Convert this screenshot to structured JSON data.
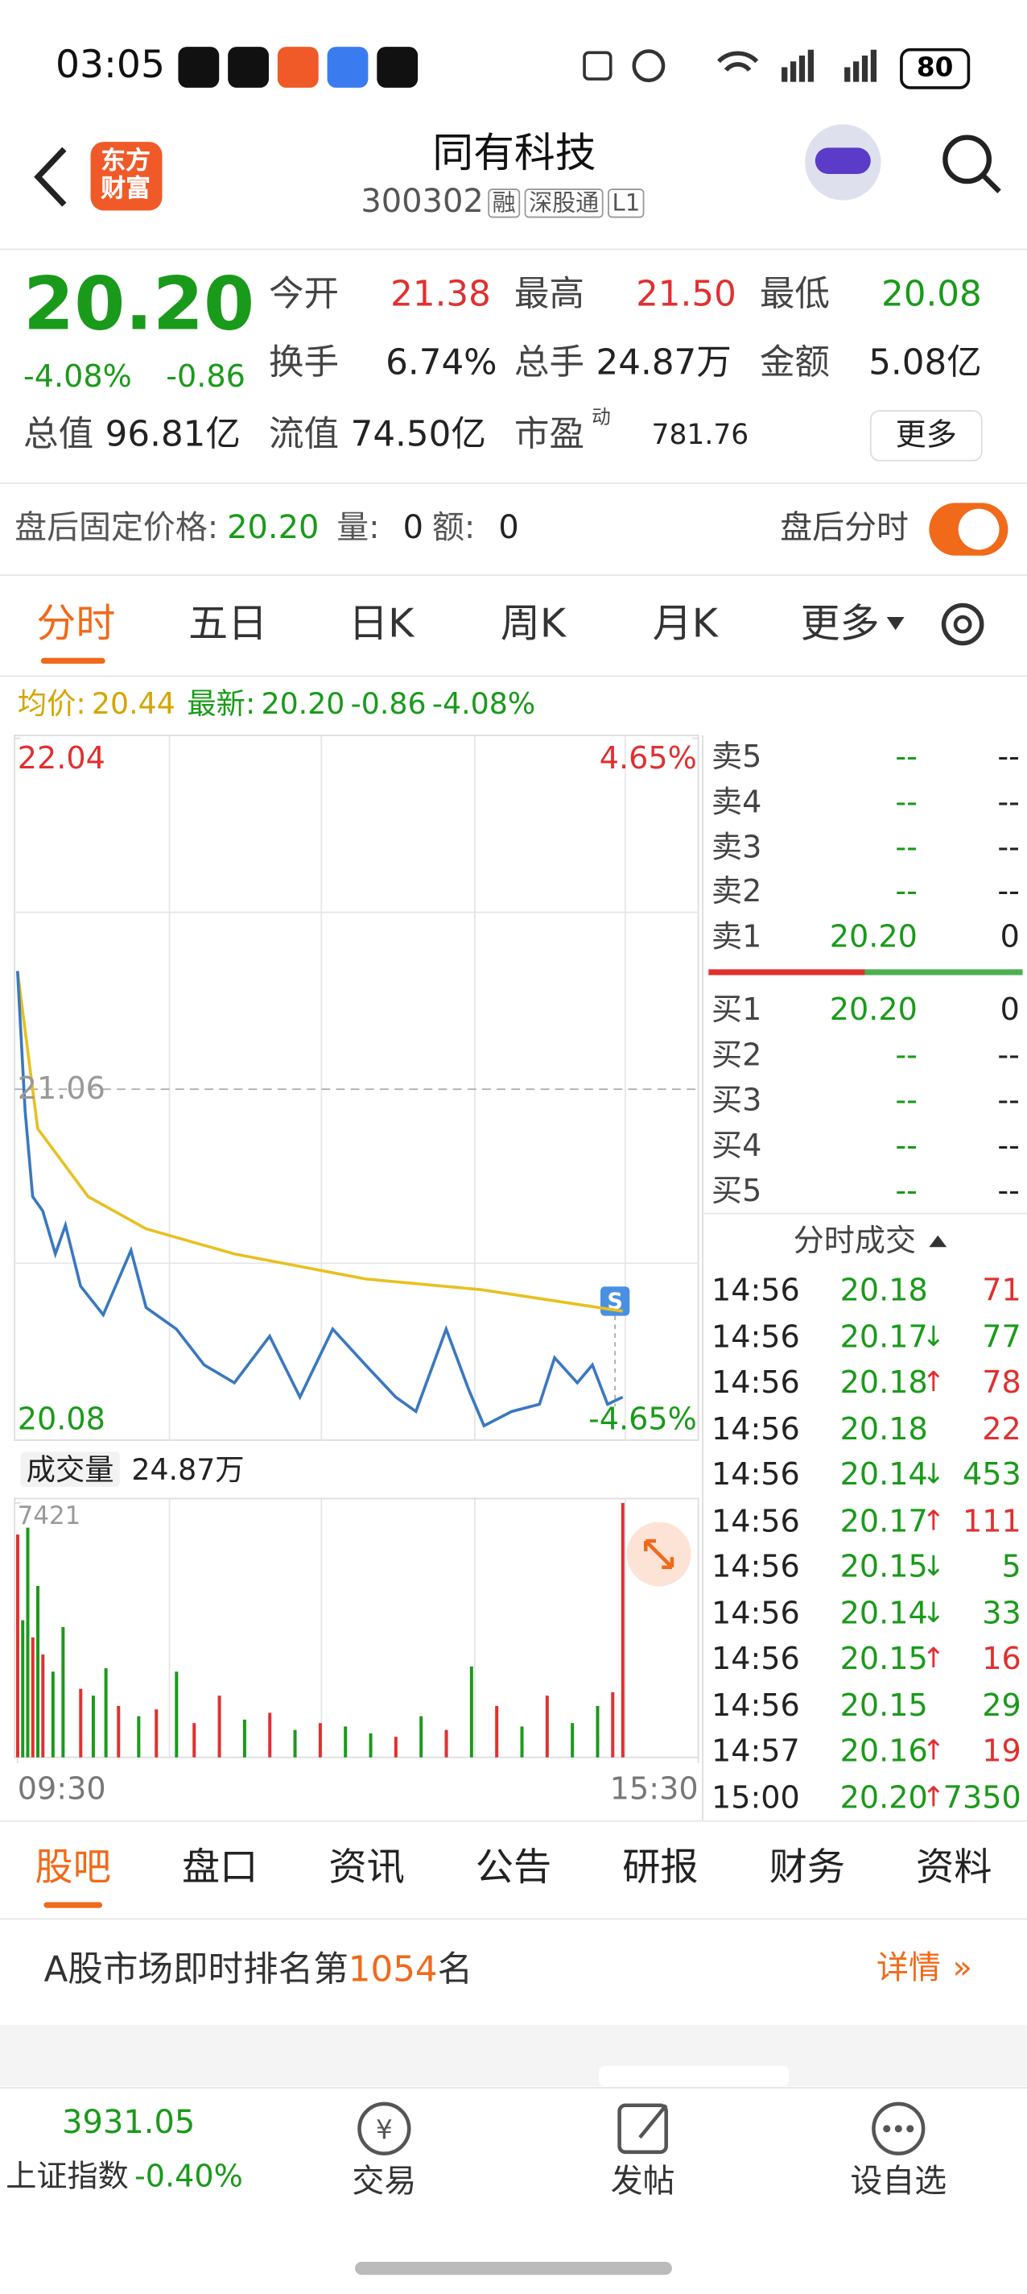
{
  "status_bar": {
    "time": "03:05",
    "battery": "80"
  },
  "header": {
    "logo": "东方财富",
    "title": "同有科技",
    "code": "300302",
    "tags": [
      "融",
      "深股通",
      "L1"
    ]
  },
  "quote": {
    "price": "20.20",
    "change_pct": "-4.08%",
    "change": "-0.86",
    "open": {
      "label": "今开",
      "value": "21.38"
    },
    "high": {
      "label": "最高",
      "value": "21.50"
    },
    "low": {
      "label": "最低",
      "value": "20.08"
    },
    "turnover": {
      "label": "换手",
      "value": "6.74%"
    },
    "volume": {
      "label": "总手",
      "value": "24.87万"
    },
    "amount": {
      "label": "金额",
      "value": "5.08亿"
    },
    "market_cap": {
      "label": "总值",
      "value": "96.81亿"
    },
    "float_cap": {
      "label": "流值",
      "value": "74.50亿"
    },
    "pe": {
      "label": "市盈",
      "superscript": "动",
      "value": "781.76"
    },
    "more": "更多"
  },
  "after_hours": {
    "price_label": "盘后固定价格:",
    "price": "20.20",
    "volume_label": "量:",
    "volume": "0",
    "amount_label": "额:",
    "amount": "0",
    "toggle_label": "盘后分时"
  },
  "chart_tabs": [
    "分时",
    "五日",
    "日K",
    "周K",
    "月K",
    "更多"
  ],
  "chart_data": [
    {
      "type": "line",
      "legend": {
        "avg_label": "均价:",
        "avg_value": "20.44",
        "latest_label": "最新:",
        "latest_value": "20.20",
        "latest_change": "-0.86",
        "latest_pct": "-4.08%"
      },
      "xlim": [
        0,
        270
      ],
      "ylim": [
        20.08,
        22.04
      ],
      "yticks": [
        22.04,
        21.06,
        20.08
      ],
      "ytick_colors": [
        "#e03030",
        "#999999",
        "#1a9a1a"
      ],
      "y2lim": [
        -4.65,
        4.65
      ],
      "y2ticks": [
        {
          "value": 4.65,
          "label": "4.65%"
        },
        {
          "value": -4.65,
          "label": "-4.65%"
        }
      ],
      "y2tick_colors": [
        "#e03030",
        "#1a9a1a"
      ],
      "series": [
        {
          "color": "#3a78c0",
          "x": [
            0,
            3,
            6,
            10,
            15,
            19,
            25,
            34,
            45,
            51,
            63,
            74,
            86,
            100,
            112,
            125,
            138,
            150,
            158,
            170,
            179,
            185,
            196,
            207,
            213,
            222,
            228,
            234,
            240
          ],
          "values": [
            21.39,
            21.0,
            20.76,
            20.72,
            20.6,
            20.68,
            20.51,
            20.43,
            20.61,
            20.45,
            20.39,
            20.29,
            20.24,
            20.37,
            20.2,
            20.39,
            20.29,
            20.2,
            20.16,
            20.39,
            20.22,
            20.12,
            20.16,
            20.18,
            20.31,
            20.24,
            20.29,
            20.18,
            20.2
          ]
        },
        {
          "color": "#e8c020",
          "x": [
            0,
            8,
            28,
            51,
            86,
            138,
            184,
            240
          ],
          "values": [
            21.39,
            20.95,
            20.76,
            20.67,
            20.6,
            20.53,
            20.5,
            20.44
          ]
        }
      ]
    },
    {
      "type": "bar",
      "title": "成交量",
      "total": "24.87万",
      "xlim": [
        0,
        270
      ],
      "ylim": [
        0,
        7421
      ],
      "yticks": [
        7421
      ],
      "xticks": [
        {
          "value": 0,
          "label": "09:30"
        },
        {
          "value": 270,
          "label": "15:30"
        }
      ],
      "x": [
        0,
        2,
        4,
        6,
        8,
        10,
        14,
        18,
        25,
        30,
        35,
        40,
        48,
        55,
        63,
        70,
        80,
        90,
        100,
        110,
        120,
        130,
        140,
        150,
        160,
        170,
        180,
        190,
        200,
        210,
        220,
        230,
        236,
        240
      ],
      "values": [
        6500,
        4000,
        6700,
        3500,
        5000,
        3000,
        2500,
        3800,
        2000,
        1800,
        2600,
        1500,
        1200,
        1400,
        2500,
        1000,
        1800,
        1100,
        1300,
        800,
        1000,
        900,
        700,
        600,
        1200,
        800,
        2650,
        1500,
        900,
        1800,
        1000,
        1500,
        1900,
        7421
      ],
      "colors": [
        "#e03030",
        "#1a9a1a",
        "#1a9a1a",
        "#e03030",
        "#1a9a1a",
        "#e03030",
        "#1a9a1a",
        "#1a9a1a",
        "#e03030",
        "#1a9a1a",
        "#1a9a1a",
        "#e03030",
        "#1a9a1a",
        "#e03030",
        "#1a9a1a",
        "#e03030",
        "#e03030",
        "#1a9a1a",
        "#e03030",
        "#1a9a1a",
        "#e03030",
        "#1a9a1a",
        "#1a9a1a",
        "#e03030",
        "#1a9a1a",
        "#e03030",
        "#1a9a1a",
        "#e03030",
        "#1a9a1a",
        "#e03030",
        "#1a9a1a",
        "#1a9a1a",
        "#e03030",
        "#e03030"
      ]
    }
  ],
  "order_book": {
    "asks": [
      {
        "label": "卖5",
        "price": "--",
        "volume": "--"
      },
      {
        "label": "卖4",
        "price": "--",
        "volume": "--"
      },
      {
        "label": "卖3",
        "price": "--",
        "volume": "--"
      },
      {
        "label": "卖2",
        "price": "--",
        "volume": "--"
      },
      {
        "label": "卖1",
        "price": "20.20",
        "volume": "0"
      }
    ],
    "bids": [
      {
        "label": "买1",
        "price": "20.20",
        "volume": "0"
      },
      {
        "label": "买2",
        "price": "--",
        "volume": "--"
      },
      {
        "label": "买3",
        "price": "--",
        "volume": "--"
      },
      {
        "label": "买4",
        "price": "--",
        "volume": "--"
      },
      {
        "label": "买5",
        "price": "--",
        "volume": "--"
      }
    ]
  },
  "trades": {
    "title": "分时成交",
    "rows": [
      {
        "time": "14:56",
        "price": "20.18",
        "volume": "71",
        "volume_color": "#e03030"
      },
      {
        "time": "14:56",
        "price": "20.17",
        "dir": "↓",
        "volume": "77",
        "volume_color": "#1a9a1a"
      },
      {
        "time": "14:56",
        "price": "20.18",
        "dir": "↑",
        "volume": "78",
        "volume_color": "#e03030"
      },
      {
        "time": "14:56",
        "price": "20.18",
        "volume": "22",
        "volume_color": "#e03030"
      },
      {
        "time": "14:56",
        "price": "20.14",
        "dir": "↓",
        "volume": "453",
        "volume_color": "#1a9a1a"
      },
      {
        "time": "14:56",
        "price": "20.17",
        "dir": "↑",
        "volume": "111",
        "volume_color": "#e03030"
      },
      {
        "time": "14:56",
        "price": "20.15",
        "dir": "↓",
        "volume": "5",
        "volume_color": "#1a9a1a"
      },
      {
        "time": "14:56",
        "price": "20.14",
        "dir": "↓",
        "volume": "33",
        "volume_color": "#1a9a1a"
      },
      {
        "time": "14:56",
        "price": "20.15",
        "dir": "↑",
        "volume": "16",
        "volume_color": "#e03030"
      },
      {
        "time": "14:56",
        "price": "20.15",
        "volume": "29",
        "volume_color": "#1a9a1a"
      },
      {
        "time": "14:57",
        "price": "20.16",
        "dir": "↑",
        "volume": "19",
        "volume_color": "#e03030"
      },
      {
        "time": "15:00",
        "price": "20.20",
        "dir": "↑",
        "volume": "7350",
        "volume_color": "#1a9a1a"
      }
    ]
  },
  "section_tabs": [
    "股吧",
    "盘口",
    "资讯",
    "公告",
    "研报",
    "财务",
    "资料"
  ],
  "rank": {
    "prefix": "A股市场即时排名第",
    "rank": "1054",
    "suffix": "名",
    "details": "详情"
  },
  "bottom_nav": {
    "index_value": "3931.05",
    "index_name": "上证指数",
    "index_change": "-0.40%",
    "items": [
      "交易",
      "发帖",
      "设自选"
    ]
  }
}
